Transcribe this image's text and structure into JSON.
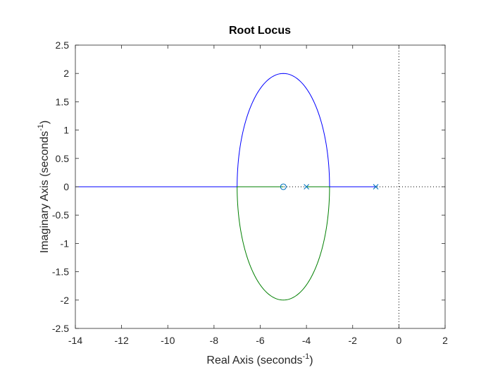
{
  "chart_data": {
    "type": "line",
    "title": "Root Locus",
    "xlabel": {
      "main": "Real Axis (seconds",
      "sup": "-1",
      "close": ")"
    },
    "ylabel": {
      "main": "Imaginary Axis (seconds",
      "sup": "-1",
      "close": ")"
    },
    "xlim": [
      -14,
      2
    ],
    "ylim": [
      -2.5,
      2.5
    ],
    "x_ticks": [
      -14,
      -12,
      -10,
      -8,
      -6,
      -4,
      -2,
      0,
      2
    ],
    "x_tick_labels": [
      "-14",
      "-12",
      "-10",
      "-8",
      "-6",
      "-4",
      "-2",
      "0",
      "2"
    ],
    "y_ticks": [
      2.5,
      2,
      1.5,
      1,
      0.5,
      0,
      -0.5,
      -1,
      -1.5,
      -2,
      -2.5
    ],
    "y_tick_labels": [
      "2.5",
      "2",
      "1.5",
      "1",
      "0.5",
      "0",
      "-0.5",
      "-1",
      "-1.5",
      "-2",
      "-2.5"
    ],
    "grid": false,
    "poles": [
      {
        "x": -4,
        "y": 0
      },
      {
        "x": -1,
        "y": 0
      }
    ],
    "zeros": [
      {
        "x": -5,
        "y": 0
      }
    ],
    "locus": {
      "ellipse_center": [
        -5,
        0
      ],
      "ellipse_radii": [
        2,
        2
      ],
      "breakaway_points": [
        -3,
        -7
      ],
      "branch_1": {
        "color": "#0000ff",
        "segments": [
          {
            "kind": "real",
            "from": -1,
            "to": -3
          },
          {
            "kind": "upper-arc",
            "from": -3,
            "to": -7
          },
          {
            "kind": "real",
            "from": -7,
            "to": -14
          }
        ]
      },
      "branch_2": {
        "color": "#007f00",
        "segments": [
          {
            "kind": "real",
            "from": -4,
            "to": -3
          },
          {
            "kind": "lower-arc",
            "from": -3,
            "to": -7
          },
          {
            "kind": "real",
            "from": -7,
            "to": -5
          }
        ]
      }
    },
    "reference_lines": [
      {
        "orientation": "vertical",
        "value": 0,
        "style": "dotted"
      },
      {
        "orientation": "horizontal",
        "value": 0,
        "style": "dotted"
      }
    ],
    "colors": {
      "branch_1": "#0000ff",
      "branch_2": "#007f00",
      "marker": "#0072bd",
      "reference": "#000000"
    }
  }
}
